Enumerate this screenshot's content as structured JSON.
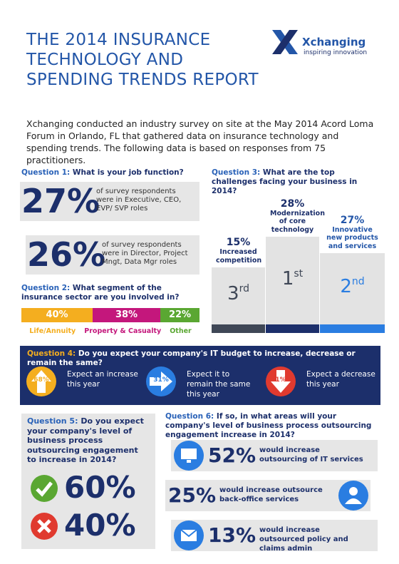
{
  "header": {
    "title_lines": [
      "THE 2014 INSURANCE",
      "TECHNOLOGY AND",
      "SPENDING TRENDS REPORT"
    ]
  },
  "logo": {
    "name": "Xchanging",
    "tagline": "inspiring innovation"
  },
  "intro": "Xchanging conducted an industry survey on site at the May 2014 Acord Loma Forum in Orlando, FL that gathered data on insurance technology and spending trends. The following data is based on responses from 75 practitioners.",
  "q1": {
    "label": "Question 1:",
    "text": "What is your job function?",
    "items": [
      {
        "value": "27%",
        "text": "of survey respondents were in Executive, CEO, EVP/ SVP roles"
      },
      {
        "value": "26%",
        "text": "of survey respondents were in Director, Project Mngt, Data Mgr roles"
      }
    ]
  },
  "q2": {
    "label": "Question 2:",
    "text": "What segment of the insurance sector are you involved in?",
    "segments": [
      {
        "value": 40,
        "label": "40%",
        "name": "Life/Annuity",
        "color": "#f4ae1f"
      },
      {
        "value": 38,
        "label": "38%",
        "name": "Property & Casualty",
        "color": "#c4177c"
      },
      {
        "value": 22,
        "label": "22%",
        "name": "Other",
        "color": "#5aa732"
      }
    ]
  },
  "q3": {
    "label": "Question 3:",
    "text": "What are the top challenges facing your business in 2014?",
    "items": [
      {
        "value": "15%",
        "text": "Increased competition",
        "rank": "3",
        "suffix": "rd"
      },
      {
        "value": "28%",
        "text": "Modernization of core technology",
        "rank": "1",
        "suffix": "st"
      },
      {
        "value": "27%",
        "text": "Innovative new products and services",
        "rank": "2",
        "suffix": "nd"
      }
    ]
  },
  "q4": {
    "label": "Question 4:",
    "text": "Do you expect your company's IT budget to increase, decrease or remain the same?",
    "items": [
      {
        "value": "68%",
        "text": "Expect an increase this year"
      },
      {
        "value": "31%",
        "text": "Expect it to remain the same this year"
      },
      {
        "value": "1%",
        "text": "Expect a decrease this year"
      }
    ]
  },
  "q5": {
    "label": "Question 5:",
    "text": "Do you expect your company's level of business process outsourcing engagement to increase in 2014?",
    "yes": "60%",
    "no": "40%"
  },
  "q6": {
    "label": "Question 6:",
    "text": "If so, in what areas will your company's level of business process outsourcing engagement increase in 2014?",
    "items": [
      {
        "value": "52%",
        "text": "would increase outsourcing of IT services"
      },
      {
        "value": "25%",
        "text": "would increase outsource back-office services"
      },
      {
        "value": "13%",
        "text": "would increase outsourced policy and claims admin"
      }
    ]
  }
}
